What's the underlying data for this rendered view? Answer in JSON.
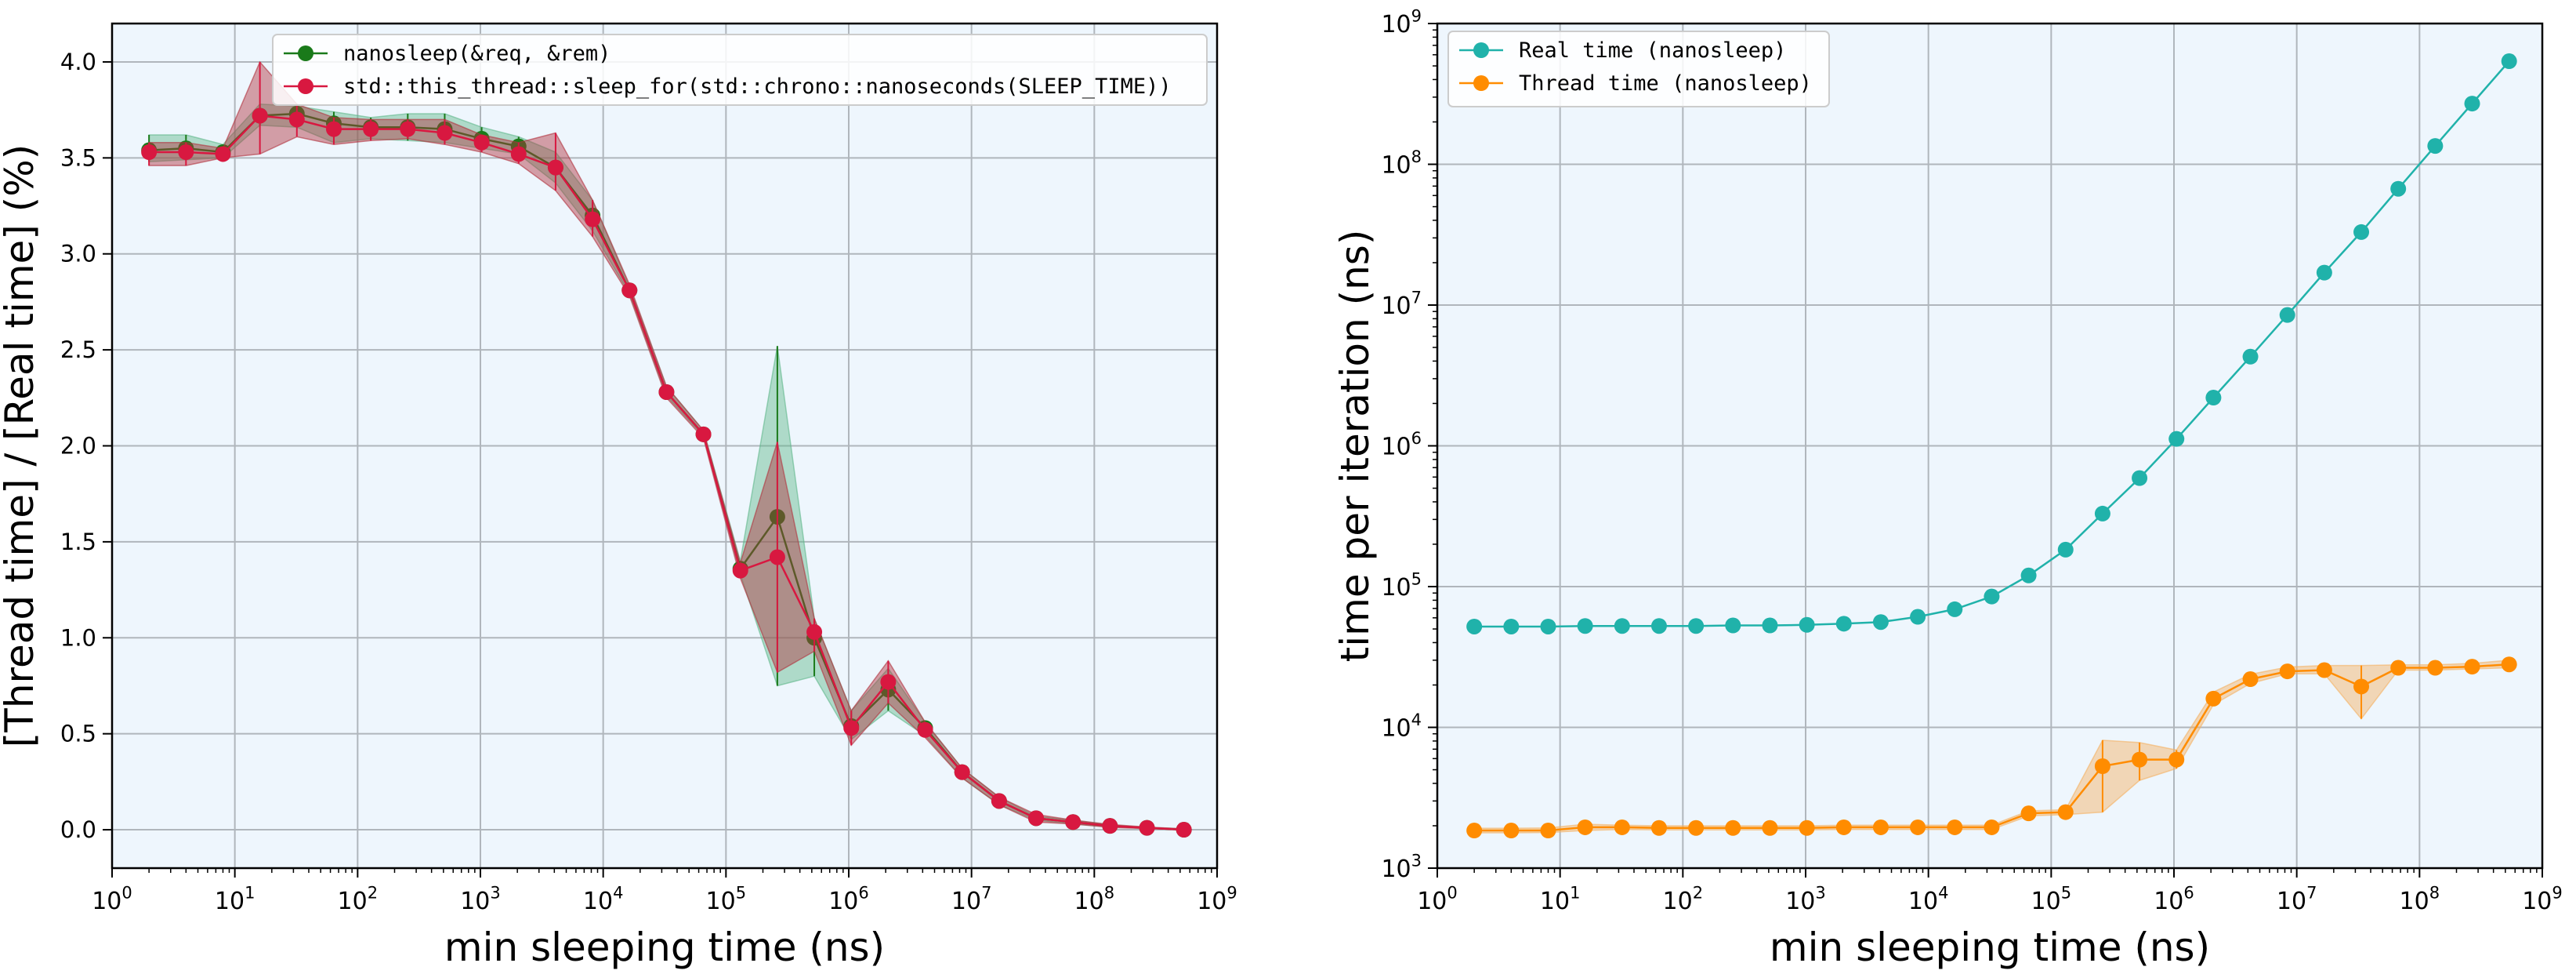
{
  "chart_data": [
    {
      "type": "line",
      "xlabel": "min sleeping time (ns)",
      "ylabel": "[Thread time] / [Real time] (%)",
      "xscale": "log",
      "xlim": [
        1,
        1000000000
      ],
      "ylim": [
        -0.2,
        4.2
      ],
      "xtick_labels": [
        "10^0",
        "10^1",
        "10^2",
        "10^3",
        "10^4",
        "10^5",
        "10^6",
        "10^7",
        "10^8",
        "10^9"
      ],
      "yticks": [
        "0.0",
        "0.5",
        "1.0",
        "1.5",
        "2.0",
        "2.5",
        "3.0",
        "3.5",
        "4.0"
      ],
      "grid": true,
      "legend_position": "top-center",
      "background": "#eef6fd",
      "x": [
        2,
        4,
        8,
        16,
        32,
        64,
        128,
        256,
        512,
        1024,
        2048,
        4096,
        8192,
        16384,
        32768,
        65536,
        131072,
        262144,
        524288,
        1048576,
        2097152,
        4194304,
        8388608,
        16777216,
        33554432,
        67108864,
        134217728,
        268435456,
        536870912
      ],
      "series": [
        {
          "name": "nanosleep(&req, &rem)",
          "color": "#1a7a1a",
          "band_color": "#5fb88a",
          "values": [
            3.54,
            3.55,
            3.53,
            3.72,
            3.73,
            3.68,
            3.66,
            3.66,
            3.65,
            3.6,
            3.56,
            3.45,
            3.2,
            2.81,
            2.28,
            2.06,
            1.36,
            1.63,
            1.0,
            0.54,
            0.73,
            0.53,
            0.3,
            0.15,
            0.06,
            0.04,
            0.02,
            0.01,
            0.0
          ],
          "lower": [
            3.48,
            3.49,
            3.5,
            3.67,
            3.66,
            3.58,
            3.6,
            3.59,
            3.58,
            3.55,
            3.52,
            3.37,
            3.12,
            2.79,
            2.26,
            2.05,
            1.33,
            0.75,
            0.8,
            0.47,
            0.62,
            0.49,
            0.27,
            0.13,
            0.05,
            0.03,
            0.015,
            0.008,
            0.0
          ],
          "upper": [
            3.62,
            3.62,
            3.57,
            3.78,
            3.77,
            3.74,
            3.71,
            3.73,
            3.73,
            3.66,
            3.61,
            3.53,
            3.28,
            2.83,
            2.31,
            2.08,
            1.4,
            2.52,
            1.1,
            0.62,
            0.84,
            0.56,
            0.32,
            0.17,
            0.07,
            0.05,
            0.025,
            0.012,
            0.005
          ]
        },
        {
          "name": "std::this_thread::sleep_for(std::chrono::nanoseconds(SLEEP_TIME))",
          "color": "#d81840",
          "band_color": "#b0303c",
          "values": [
            3.53,
            3.53,
            3.52,
            3.72,
            3.7,
            3.65,
            3.65,
            3.65,
            3.63,
            3.58,
            3.52,
            3.45,
            3.18,
            2.81,
            2.28,
            2.06,
            1.35,
            1.42,
            1.03,
            0.53,
            0.77,
            0.52,
            0.3,
            0.15,
            0.06,
            0.04,
            0.02,
            0.01,
            0.0
          ],
          "lower": [
            3.46,
            3.46,
            3.5,
            3.52,
            3.61,
            3.57,
            3.59,
            3.6,
            3.57,
            3.53,
            3.47,
            3.33,
            3.09,
            2.78,
            2.25,
            2.04,
            1.31,
            0.82,
            0.93,
            0.44,
            0.66,
            0.48,
            0.27,
            0.13,
            0.04,
            0.03,
            0.012,
            0.006,
            0.0
          ],
          "upper": [
            3.58,
            3.58,
            3.55,
            4.0,
            3.78,
            3.71,
            3.7,
            3.7,
            3.7,
            3.62,
            3.58,
            3.63,
            3.28,
            2.84,
            2.31,
            2.08,
            1.39,
            2.02,
            1.1,
            0.62,
            0.88,
            0.56,
            0.32,
            0.17,
            0.08,
            0.05,
            0.028,
            0.014,
            0.005
          ]
        }
      ]
    },
    {
      "type": "line",
      "xlabel": "min sleeping time (ns)",
      "ylabel": "time per iteration (ns)",
      "xscale": "log",
      "yscale": "log",
      "xlim": [
        1,
        1000000000
      ],
      "ylim": [
        1000,
        1000000000
      ],
      "xtick_labels": [
        "10^0",
        "10^1",
        "10^2",
        "10^3",
        "10^4",
        "10^5",
        "10^6",
        "10^7",
        "10^8",
        "10^9"
      ],
      "ytick_labels": [
        "10^3",
        "10^4",
        "10^5",
        "10^6",
        "10^7",
        "10^8",
        "10^9"
      ],
      "grid": true,
      "legend_position": "top-left",
      "background": "#eef6fd",
      "x": [
        2,
        4,
        8,
        16,
        32,
        64,
        128,
        256,
        512,
        1024,
        2048,
        4096,
        8192,
        16384,
        32768,
        65536,
        131072,
        262144,
        524288,
        1048576,
        2097152,
        4194304,
        8388608,
        16777216,
        33554432,
        67108864,
        134217728,
        268435456,
        536870912
      ],
      "series": [
        {
          "name": "Real time (nanosleep)",
          "color": "#20b2aa",
          "values": [
            52000,
            52000,
            52000,
            52500,
            52500,
            52500,
            52500,
            53000,
            53000,
            53500,
            54500,
            56000,
            61000,
            69000,
            85000,
            120000,
            183000,
            330000,
            590000,
            1120000,
            2200000,
            4300000,
            8500000,
            17000000,
            33000000,
            67000000,
            135000000,
            270000000,
            540000000
          ],
          "lower": [
            52000,
            52000,
            52000,
            52500,
            52500,
            52500,
            52500,
            53000,
            53000,
            53500,
            54500,
            56000,
            61000,
            69000,
            85000,
            120000,
            183000,
            330000,
            590000,
            1120000,
            2200000,
            4300000,
            8500000,
            17000000,
            33000000,
            67000000,
            135000000,
            270000000,
            540000000
          ],
          "upper": [
            52000,
            52000,
            52000,
            52500,
            52500,
            52500,
            52500,
            53000,
            53000,
            53500,
            54500,
            56000,
            61000,
            69000,
            85000,
            120000,
            183000,
            330000,
            590000,
            1120000,
            2200000,
            4300000,
            8500000,
            17000000,
            33000000,
            67000000,
            135000000,
            270000000,
            540000000
          ]
        },
        {
          "name": "Thread time (nanosleep)",
          "color": "#ff8c00",
          "band_color": "#f5b060",
          "values": [
            1850,
            1850,
            1850,
            1950,
            1950,
            1930,
            1930,
            1930,
            1930,
            1930,
            1950,
            1950,
            1950,
            1950,
            1950,
            2450,
            2500,
            5300,
            5900,
            5900,
            16000,
            22000,
            25000,
            25500,
            19500,
            26500,
            26500,
            27000,
            28000
          ],
          "lower": [
            1780,
            1780,
            1790,
            1850,
            1880,
            1870,
            1870,
            1870,
            1870,
            1870,
            1880,
            1880,
            1880,
            1880,
            1880,
            2350,
            2400,
            2500,
            4200,
            5100,
            14500,
            20500,
            24000,
            24000,
            11500,
            25500,
            25500,
            26000,
            26500
          ],
          "upper": [
            1920,
            1920,
            1930,
            2050,
            2020,
            2000,
            2000,
            2000,
            2000,
            2000,
            2020,
            2020,
            2020,
            2020,
            2020,
            2550,
            2600,
            8100,
            7800,
            6900,
            17800,
            23800,
            26800,
            27500,
            27500,
            27800,
            27800,
            28500,
            30000
          ]
        }
      ]
    }
  ]
}
